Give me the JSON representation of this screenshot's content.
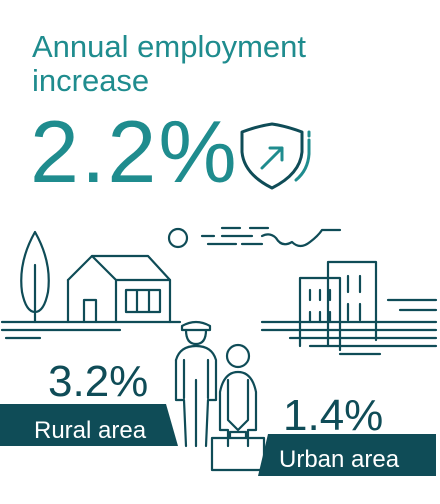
{
  "headline": {
    "line1": "Annual employment",
    "line2": "increase"
  },
  "overall": {
    "value": "2.2%"
  },
  "rural": {
    "value": "3.2%",
    "label": "Rural area"
  },
  "urban": {
    "value": "1.4%",
    "label": "Urban area"
  },
  "icons": [
    "shield-arrow-icon",
    "tree-icon",
    "house-icon",
    "sun-icon",
    "cloud-icon",
    "buildings-icon",
    "adult-person-icon",
    "child-person-icon",
    "briefcase-icon"
  ],
  "colors": {
    "teal": "#1f8c8e",
    "dark_teal": "#0f4c57"
  }
}
